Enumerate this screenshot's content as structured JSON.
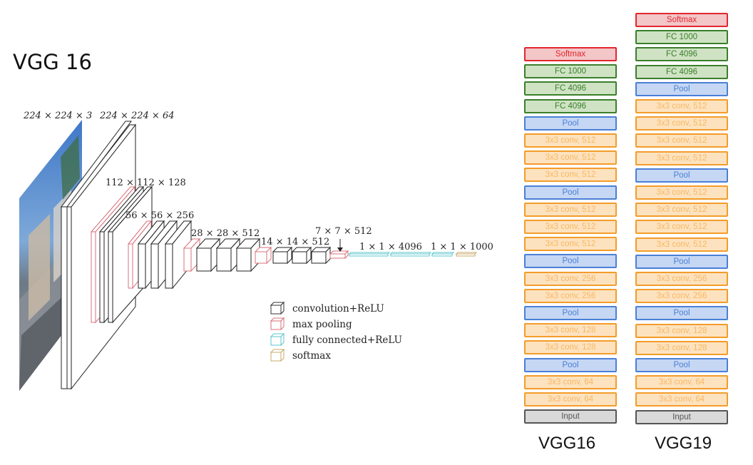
{
  "title": "VGG 16",
  "diagram": {
    "labels": {
      "input": "224 × 224 × 3",
      "conv1": "224 × 224 × 64",
      "conv2": "112 × 112 × 128",
      "conv3": "56 × 56 × 256",
      "conv4": "28 × 28 × 512",
      "conv5": "14 × 14 × 512",
      "pool5": "7 × 7 × 512",
      "fc": "1 × 1 × 4096",
      "softmax": "1 × 1 × 1000"
    },
    "legend": [
      {
        "label": "convolution+ReLU",
        "color": "#333333"
      },
      {
        "label": "max pooling",
        "color": "#d9707b"
      },
      {
        "label": "fully connected+ReLU",
        "color": "#5bc6cc"
      },
      {
        "label": "softmax",
        "color": "#c9a86a"
      }
    ]
  },
  "vgg16": {
    "caption": "VGG16",
    "layers": [
      {
        "label": "Softmax",
        "type": "softmax"
      },
      {
        "label": "FC 1000",
        "type": "fc"
      },
      {
        "label": "FC 4096",
        "type": "fc"
      },
      {
        "label": "FC 4096",
        "type": "fc"
      },
      {
        "label": "Pool",
        "type": "pool"
      },
      {
        "label": "3x3 conv, 512",
        "type": "conv"
      },
      {
        "label": "3x3 conv, 512",
        "type": "conv"
      },
      {
        "label": "3x3 conv, 512",
        "type": "conv"
      },
      {
        "label": "Pool",
        "type": "pool"
      },
      {
        "label": "3x3 conv, 512",
        "type": "conv"
      },
      {
        "label": "3x3 conv, 512",
        "type": "conv"
      },
      {
        "label": "3x3 conv, 512",
        "type": "conv"
      },
      {
        "label": "Pool",
        "type": "pool"
      },
      {
        "label": "3x3 conv, 256",
        "type": "conv"
      },
      {
        "label": "3x3 conv, 256",
        "type": "conv"
      },
      {
        "label": "Pool",
        "type": "pool"
      },
      {
        "label": "3x3 conv, 128",
        "type": "conv"
      },
      {
        "label": "3x3 conv, 128",
        "type": "conv"
      },
      {
        "label": "Pool",
        "type": "pool"
      },
      {
        "label": "3x3 conv, 64",
        "type": "conv"
      },
      {
        "label": "3x3 conv, 64",
        "type": "conv"
      },
      {
        "label": "Input",
        "type": "input"
      }
    ]
  },
  "vgg19": {
    "caption": "VGG19",
    "layers": [
      {
        "label": "Softmax",
        "type": "softmax"
      },
      {
        "label": "FC 1000",
        "type": "fc"
      },
      {
        "label": "FC 4096",
        "type": "fc"
      },
      {
        "label": "FC 4096",
        "type": "fc"
      },
      {
        "label": "Pool",
        "type": "pool"
      },
      {
        "label": "3x3 conv, 512",
        "type": "conv"
      },
      {
        "label": "3x3 conv, 512",
        "type": "conv"
      },
      {
        "label": "3x3 conv, 512",
        "type": "conv"
      },
      {
        "label": "3x3 conv, 512",
        "type": "conv"
      },
      {
        "label": "Pool",
        "type": "pool"
      },
      {
        "label": "3x3 conv, 512",
        "type": "conv"
      },
      {
        "label": "3x3 conv, 512",
        "type": "conv"
      },
      {
        "label": "3x3 conv, 512",
        "type": "conv"
      },
      {
        "label": "3x3 conv, 512",
        "type": "conv"
      },
      {
        "label": "Pool",
        "type": "pool"
      },
      {
        "label": "3x3 conv, 256",
        "type": "conv"
      },
      {
        "label": "3x3 conv, 256",
        "type": "conv"
      },
      {
        "label": "Pool",
        "type": "pool"
      },
      {
        "label": "3x3 conv, 128",
        "type": "conv"
      },
      {
        "label": "3x3 conv, 128",
        "type": "conv"
      },
      {
        "label": "Pool",
        "type": "pool"
      },
      {
        "label": "3x3 conv, 64",
        "type": "conv"
      },
      {
        "label": "3x3 conv, 64",
        "type": "conv"
      },
      {
        "label": "Input",
        "type": "input"
      }
    ]
  }
}
